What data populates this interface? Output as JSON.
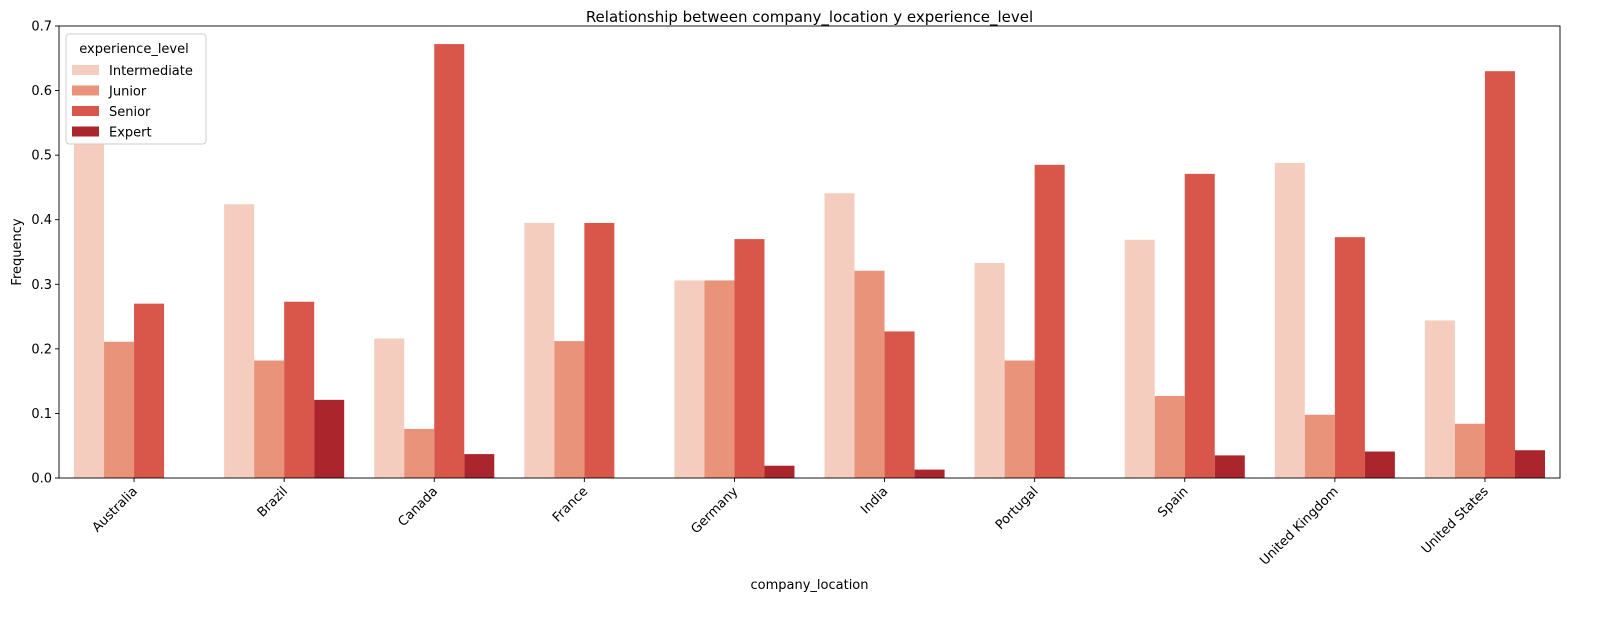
{
  "chart_data": {
    "type": "bar",
    "title": "Relationship between company_location y experience_level",
    "xlabel": "company_location",
    "ylabel": "Frequency",
    "ylim": [
      0,
      0.7
    ],
    "yticks": [
      "0.0",
      "0.1",
      "0.2",
      "0.3",
      "0.4",
      "0.5",
      "0.6",
      "0.7"
    ],
    "grid": false,
    "legend": {
      "title": "experience_level",
      "position": "top-left"
    },
    "categories": [
      "Australia",
      "Brazil",
      "Canada",
      "France",
      "Germany",
      "India",
      "Portugal",
      "Spain",
      "United Kingdom",
      "United States"
    ],
    "series": [
      {
        "name": "Intermediate",
        "color": "#f4cdbf",
        "values": [
          0.52,
          0.424,
          0.216,
          0.395,
          0.306,
          0.441,
          0.333,
          0.369,
          0.488,
          0.244
        ]
      },
      {
        "name": "Junior",
        "color": "#e9947a",
        "values": [
          0.211,
          0.182,
          0.076,
          0.212,
          0.306,
          0.321,
          0.182,
          0.127,
          0.098,
          0.084
        ]
      },
      {
        "name": "Senior",
        "color": "#d9574a",
        "values": [
          0.27,
          0.273,
          0.672,
          0.395,
          0.37,
          0.227,
          0.485,
          0.471,
          0.373,
          0.63
        ]
      },
      {
        "name": "Expert",
        "color": "#ab262c",
        "values": [
          0,
          0.121,
          0.037,
          0,
          0.019,
          0.013,
          0,
          0.035,
          0.041,
          0.043
        ]
      }
    ]
  }
}
